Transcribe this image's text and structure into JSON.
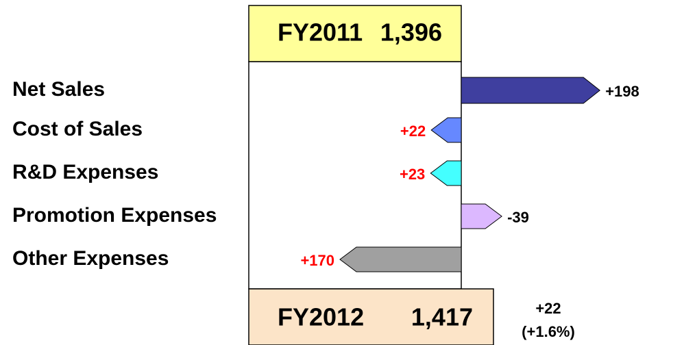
{
  "chart_data": {
    "type": "waterfall",
    "start": {
      "name": "FY2011",
      "value": "1,396"
    },
    "end": {
      "name": "FY2012",
      "value": "1,417",
      "change": "+22",
      "change_pct": "(+1.6%)"
    },
    "categories": [
      "Net Sales",
      "Cost of Sales",
      "R&D Expenses",
      "Promotion Expenses",
      "Other Expenses"
    ],
    "values": [
      198,
      22,
      23,
      -39,
      170
    ],
    "value_labels": [
      "+198",
      "+22",
      "+23",
      "-39",
      "+170"
    ],
    "directions": [
      "right",
      "left",
      "left",
      "right",
      "left"
    ],
    "colors": [
      "#3f3f9f",
      "#6688ff",
      "#44ffff",
      "#dcb8ff",
      "#a0a0a0"
    ],
    "label_colors": [
      "#000000",
      "#ff0000",
      "#ff0000",
      "#000000",
      "#ff0000"
    ]
  }
}
